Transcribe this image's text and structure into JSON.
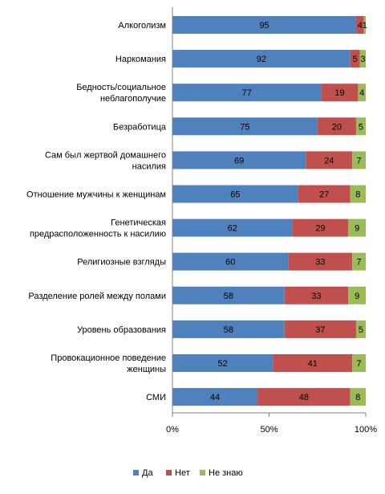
{
  "chart_data": {
    "type": "bar",
    "orientation": "horizontal",
    "stacked": true,
    "percent_stacked": true,
    "categories": [
      "Алкоголизм",
      "Наркомания",
      "Бедность/социальное\nнеблагополучие",
      "Безработица",
      "Сам был жертвой домашнего\nнасилия",
      "Отношение мужчины к женщинам",
      "Генетическая\nпредрасположенность к насилию",
      "Религиозные взгляды",
      "Разделение ролей между полами",
      "Уровень образования",
      "Провокационное  поведение\nженщины",
      "СМИ"
    ],
    "series": [
      {
        "name": "Да",
        "color": "#4f81bd",
        "values": [
          95,
          92,
          77,
          75,
          69,
          65,
          62,
          60,
          58,
          58,
          52,
          44
        ]
      },
      {
        "name": "Нет",
        "color": "#c0504d",
        "values": [
          4,
          5,
          19,
          20,
          24,
          27,
          29,
          33,
          33,
          37,
          41,
          48
        ]
      },
      {
        "name": "Не знаю",
        "color": "#9bbb59",
        "values": [
          1,
          3,
          4,
          5,
          7,
          8,
          9,
          7,
          9,
          5,
          7,
          8
        ]
      }
    ],
    "xaxis": {
      "ticks": [
        "0%",
        "50%",
        "100%"
      ],
      "range": [
        0,
        100
      ]
    },
    "grid": false,
    "legend": "bottom"
  }
}
